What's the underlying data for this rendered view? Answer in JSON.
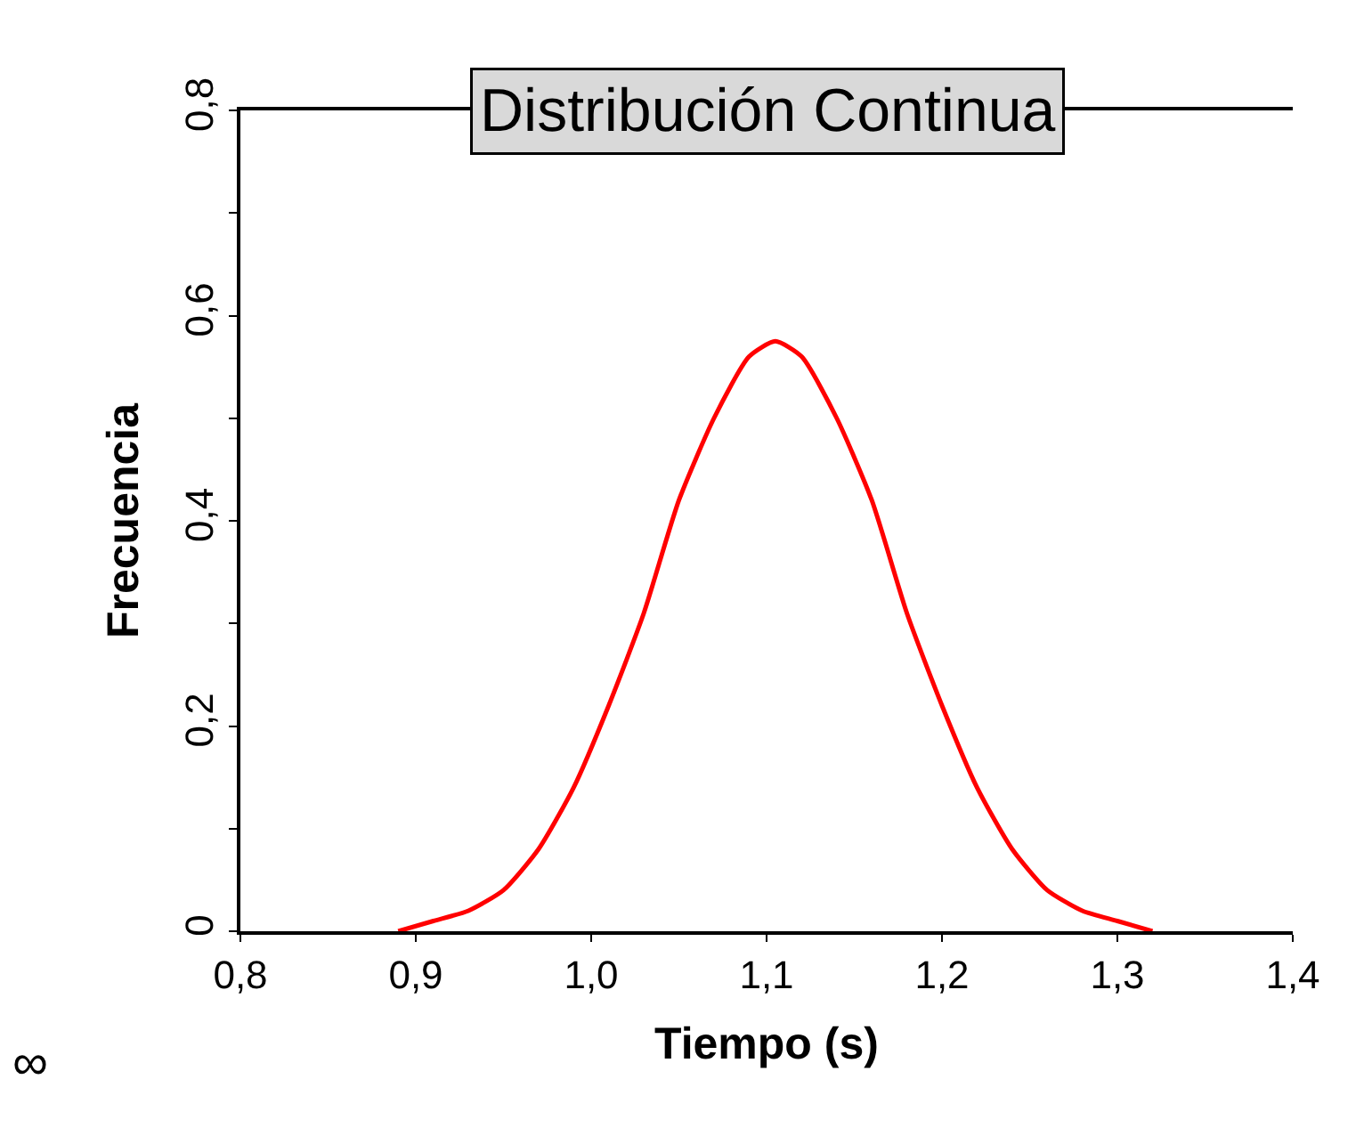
{
  "chart_data": {
    "type": "line",
    "title": "Distribución Continua",
    "xlabel": "Tiempo (s)",
    "ylabel": "Frecuencia",
    "x": [
      0.89,
      0.91,
      0.93,
      0.95,
      0.97,
      0.99,
      1.01,
      1.03,
      1.05,
      1.07,
      1.09,
      1.105,
      1.12,
      1.14,
      1.16,
      1.18,
      1.2,
      1.22,
      1.24,
      1.26,
      1.28,
      1.3,
      1.32
    ],
    "series": [
      {
        "color": "#ff0000",
        "values": [
          0.0,
          0.01,
          0.02,
          0.04,
          0.08,
          0.14,
          0.22,
          0.31,
          0.42,
          0.5,
          0.56,
          0.575,
          0.56,
          0.5,
          0.42,
          0.31,
          0.22,
          0.14,
          0.08,
          0.04,
          0.02,
          0.01,
          0.0
        ]
      }
    ],
    "xlim": [
      0.8,
      1.4
    ],
    "xticks": [
      {
        "value": 0.8,
        "label": "0,8"
      },
      {
        "value": 0.9,
        "label": "0,9"
      },
      {
        "value": 1.0,
        "label": "1,0"
      },
      {
        "value": 1.1,
        "label": "1,1"
      },
      {
        "value": 1.2,
        "label": "1,2"
      },
      {
        "value": 1.3,
        "label": "1,3"
      },
      {
        "value": 1.4,
        "label": "1,4"
      }
    ],
    "ylim": [
      0,
      0.8
    ],
    "yticks": [
      0,
      {
        "value": 0.1,
        "label": null
      },
      {
        "value": 0.2,
        "label": "0,2"
      },
      {
        "value": 0.3,
        "label": null
      },
      {
        "value": 0.4,
        "label": "0,4"
      },
      {
        "value": 0.5,
        "label": null
      },
      {
        "value": 0.6,
        "label": "0,6"
      },
      {
        "value": 0.7,
        "label": null
      },
      {
        "value": 0.8,
        "label": "0,8"
      }
    ],
    "annotations": [
      "∞"
    ],
    "grid": false,
    "marker": "none",
    "line_style": "solid"
  }
}
